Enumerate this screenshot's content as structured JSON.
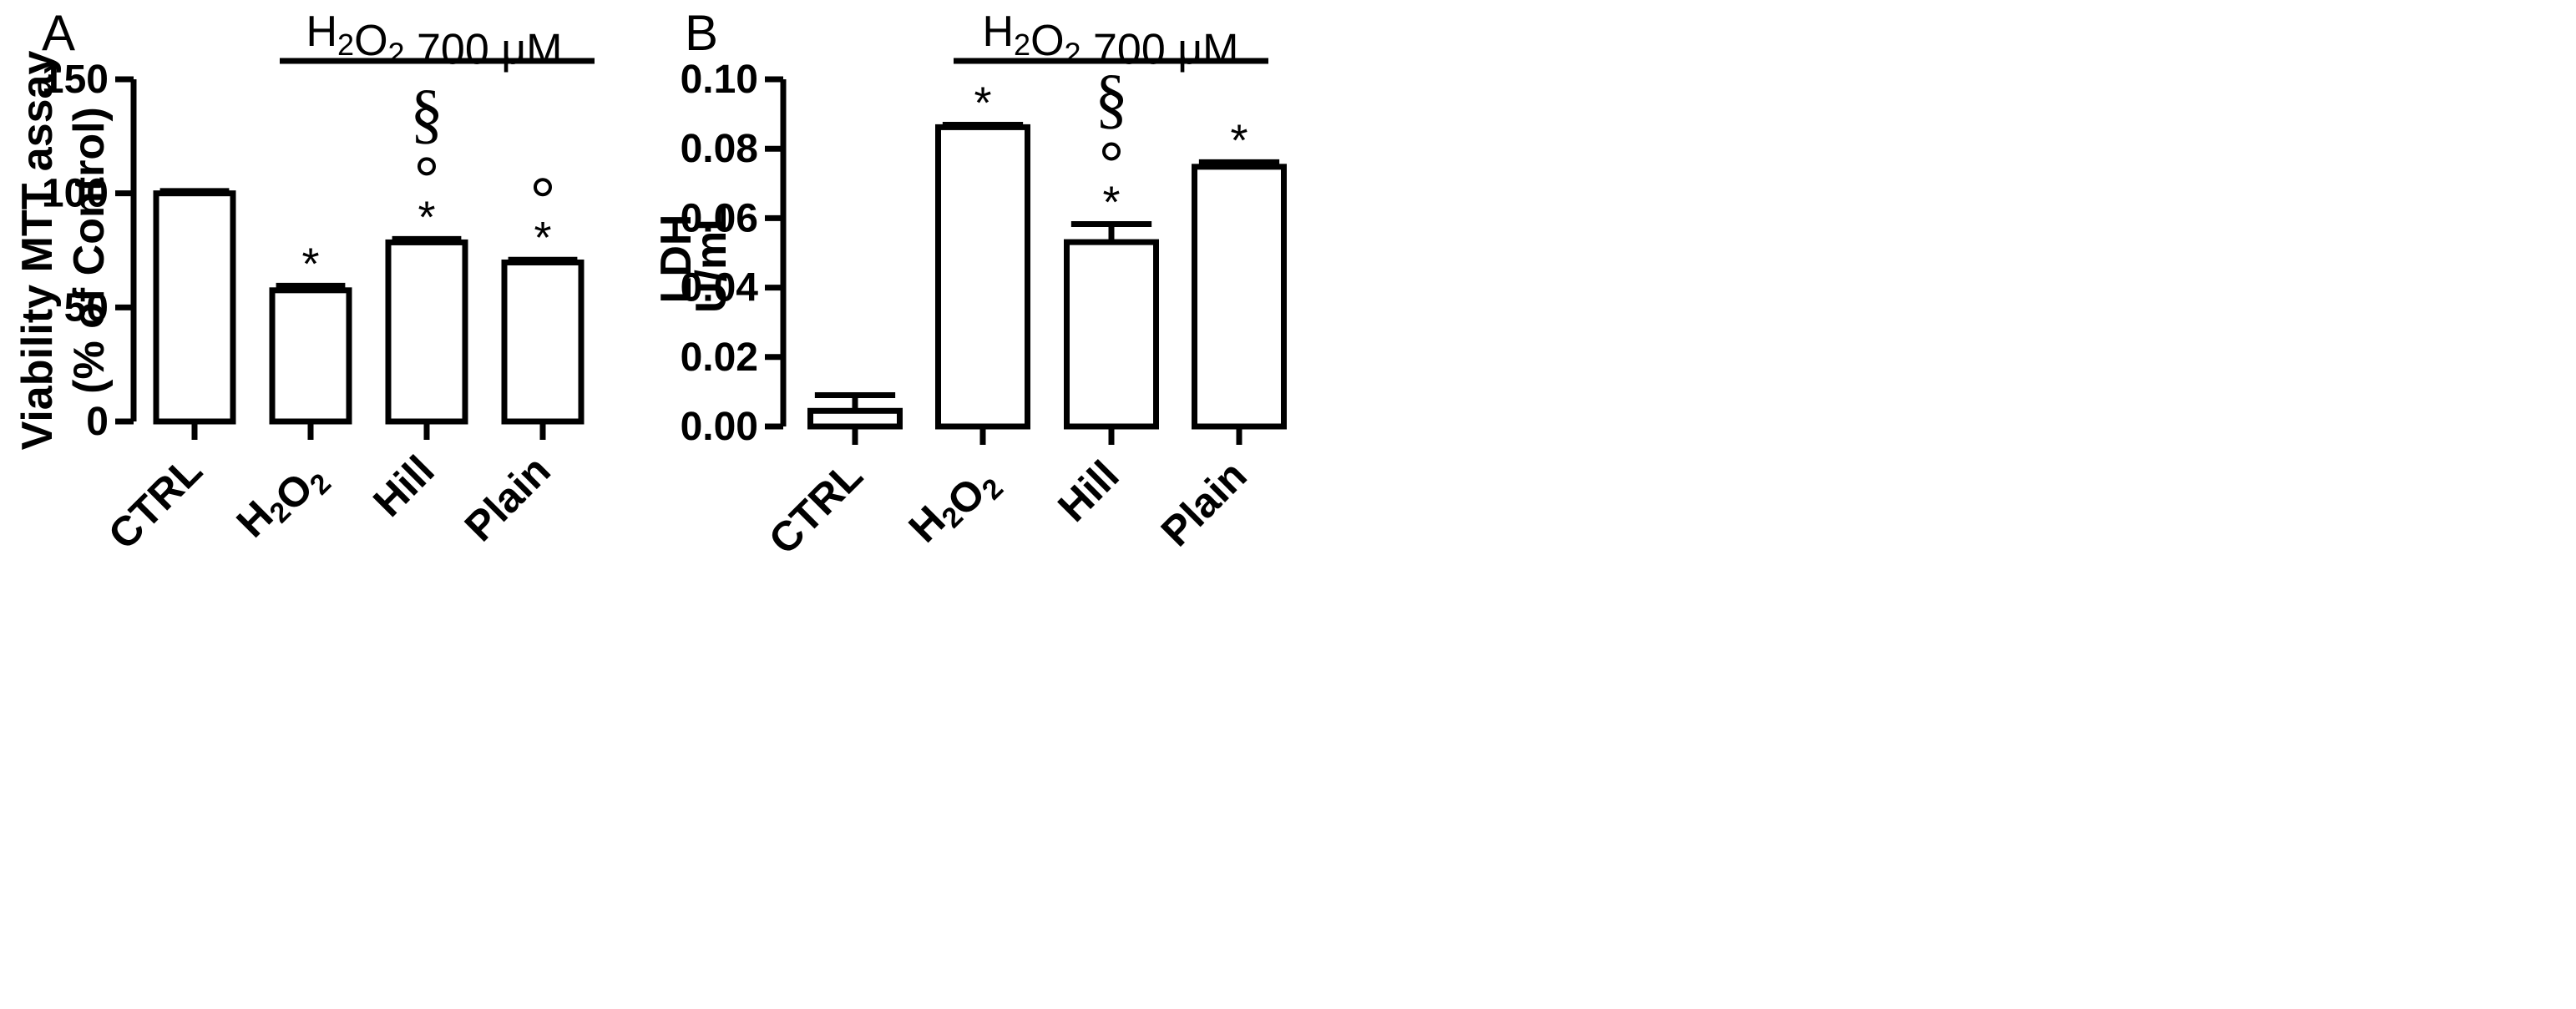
{
  "chart_data": [
    {
      "type": "bar",
      "panel_label": "A",
      "treatment_label": "H2O2 700 μM",
      "ylabel_line1": "Viability MTT assay",
      "ylabel_line2": "(% of Control)",
      "ylim": [
        0,
        150
      ],
      "yticks": [
        "0",
        "50",
        "100",
        "150"
      ],
      "categories": [
        "CTRL",
        "H2O2",
        "Hill",
        "Plain"
      ],
      "values": [
        100,
        57.5,
        78.5,
        69.7
      ],
      "errors": [
        1.0,
        2.0,
        1.5,
        1.2
      ],
      "annotations": [
        [],
        [
          "*"
        ],
        [
          "*",
          "°",
          "§"
        ],
        [
          "*",
          "°"
        ]
      ],
      "grid": false,
      "legend": "none"
    },
    {
      "type": "bar",
      "panel_label": "B",
      "treatment_label": "H2O2 700 μM",
      "ylabel_line1": "LDH",
      "ylabel_line2": "U/mL",
      "ylim": [
        0,
        0.1
      ],
      "yticks": [
        "0.00",
        "0.02",
        "0.04",
        "0.06",
        "0.08",
        "0.10"
      ],
      "categories": [
        "CTRL",
        "H2O2",
        "Hill",
        "Plain"
      ],
      "values": [
        0.0045,
        0.0862,
        0.0531,
        0.0748
      ],
      "errors": [
        0.0045,
        0.0007,
        0.0052,
        0.0013
      ],
      "annotations": [
        [],
        [
          "*"
        ],
        [
          "*",
          "°",
          "§"
        ],
        [
          "*"
        ]
      ],
      "grid": false,
      "legend": "none"
    }
  ]
}
